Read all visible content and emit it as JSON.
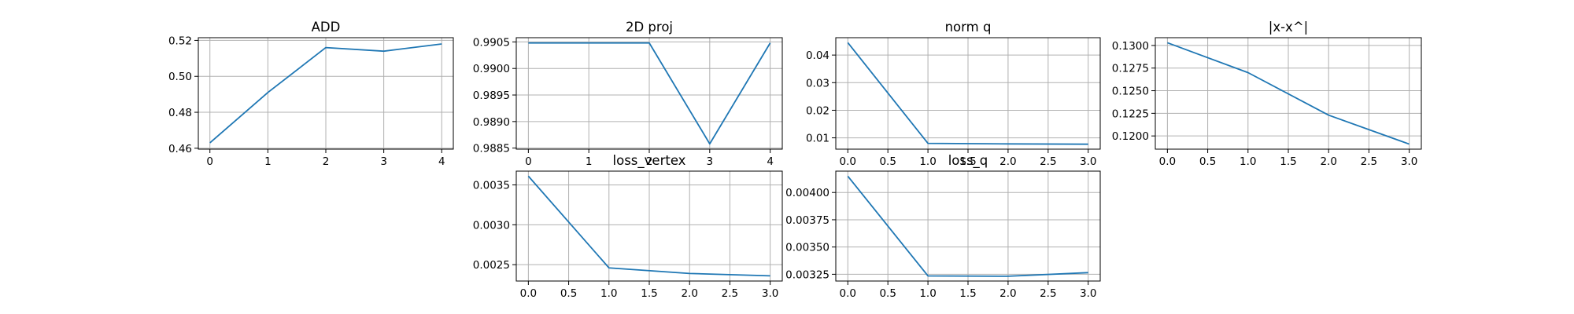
{
  "chart_data": [
    {
      "type": "line",
      "title": "ADD",
      "x": [
        0,
        1,
        2,
        3,
        4
      ],
      "series": [
        {
          "values": [
            0.463,
            0.491,
            0.516,
            0.514,
            0.518
          ]
        }
      ],
      "xlim": [
        -0.2,
        4.2
      ],
      "ylim": [
        0.4595,
        0.5215
      ],
      "xticks": [
        0,
        1,
        2,
        3,
        4
      ],
      "xtick_labels": [
        "0",
        "1",
        "2",
        "3",
        "4"
      ],
      "yticks": [
        0.46,
        0.48,
        0.5,
        0.52
      ],
      "ytick_labels": [
        "0.46",
        "0.48",
        "0.50",
        "0.52"
      ],
      "grid": true
    },
    {
      "type": "line",
      "title": "2D proj",
      "x": [
        0,
        1,
        2,
        3,
        4
      ],
      "series": [
        {
          "values": [
            0.99048,
            0.99048,
            0.99048,
            0.98858,
            0.99048
          ]
        }
      ],
      "xlim": [
        -0.2,
        4.2
      ],
      "ylim": [
        0.98848,
        0.99058
      ],
      "xticks": [
        0,
        1,
        2,
        3,
        4
      ],
      "xtick_labels": [
        "0",
        "1",
        "2",
        "3",
        "4"
      ],
      "yticks": [
        0.9885,
        0.989,
        0.9895,
        0.99,
        0.9905
      ],
      "ytick_labels": [
        "0.9885",
        "0.9890",
        "0.9895",
        "0.9900",
        "0.9905"
      ],
      "grid": true
    },
    {
      "type": "line",
      "title": "norm q",
      "x": [
        0,
        1,
        2,
        3
      ],
      "series": [
        {
          "values": [
            0.0445,
            0.008,
            0.0078,
            0.0077
          ]
        }
      ],
      "xlim": [
        -0.15,
        3.15
      ],
      "ylim": [
        0.0059,
        0.0463
      ],
      "xticks": [
        0.0,
        0.5,
        1.0,
        1.5,
        2.0,
        2.5,
        3.0
      ],
      "xtick_labels": [
        "0.0",
        "0.5",
        "1.0",
        "1.5",
        "2.0",
        "2.5",
        "3.0"
      ],
      "yticks": [
        0.01,
        0.02,
        0.03,
        0.04
      ],
      "ytick_labels": [
        "0.01",
        "0.02",
        "0.03",
        "0.04"
      ],
      "grid": true
    },
    {
      "type": "line",
      "title": "|x-x^|",
      "x": [
        0,
        1,
        2,
        3
      ],
      "series": [
        {
          "values": [
            0.1303,
            0.127,
            0.1223,
            0.1191
          ]
        }
      ],
      "xlim": [
        -0.15,
        3.15
      ],
      "ylim": [
        0.11854,
        0.13086
      ],
      "xticks": [
        0.0,
        0.5,
        1.0,
        1.5,
        2.0,
        2.5,
        3.0
      ],
      "xtick_labels": [
        "0.0",
        "0.5",
        "1.0",
        "1.5",
        "2.0",
        "2.5",
        "3.0"
      ],
      "yticks": [
        0.12,
        0.1225,
        0.125,
        0.1275,
        0.13
      ],
      "ytick_labels": [
        "0.1200",
        "0.1225",
        "0.1250",
        "0.1275",
        "0.1300"
      ],
      "grid": true
    },
    {
      "type": "line",
      "title": "loss_vertex",
      "x": [
        0,
        1,
        2,
        3
      ],
      "series": [
        {
          "values": [
            0.00361,
            0.00246,
            0.00239,
            0.00236
          ]
        }
      ],
      "xlim": [
        -0.15,
        3.15
      ],
      "ylim": [
        0.002295,
        0.003673
      ],
      "xticks": [
        0.0,
        0.5,
        1.0,
        1.5,
        2.0,
        2.5,
        3.0
      ],
      "xtick_labels": [
        "0.0",
        "0.5",
        "1.0",
        "1.5",
        "2.0",
        "2.5",
        "3.0"
      ],
      "yticks": [
        0.0025,
        0.003,
        0.0035
      ],
      "ytick_labels": [
        "0.0025",
        "0.0030",
        "0.0035"
      ],
      "grid": true
    },
    {
      "type": "line",
      "title": "loss_q",
      "x": [
        0,
        1,
        2,
        3
      ],
      "series": [
        {
          "values": [
            0.00415,
            0.003235,
            0.003232,
            0.003265
          ]
        }
      ],
      "xlim": [
        -0.15,
        3.15
      ],
      "ylim": [
        0.003188,
        0.004196
      ],
      "xticks": [
        0.0,
        0.5,
        1.0,
        1.5,
        2.0,
        2.5,
        3.0
      ],
      "xtick_labels": [
        "0.0",
        "0.5",
        "1.0",
        "1.5",
        "2.0",
        "2.5",
        "3.0"
      ],
      "yticks": [
        0.00325,
        0.0035,
        0.00375,
        0.004
      ],
      "ytick_labels": [
        "0.00325",
        "0.00350",
        "0.00375",
        "0.00400"
      ],
      "grid": true
    }
  ],
  "colors": {
    "line": "#1f77b4",
    "grid": "#b0b0b0",
    "axes": "#000000",
    "background": "#ffffff"
  }
}
